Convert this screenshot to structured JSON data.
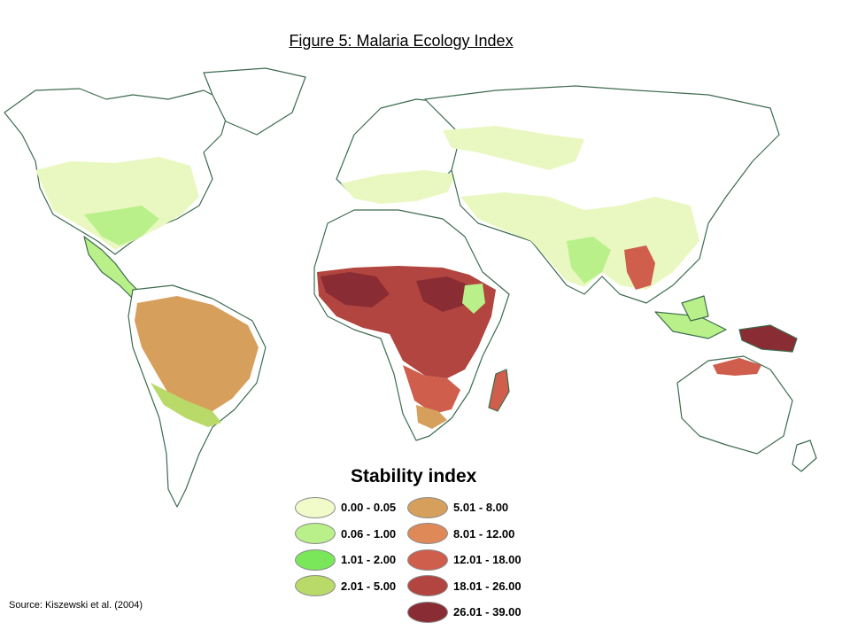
{
  "title": "Figure 5: Malaria Ecology Index",
  "legend": {
    "title": "Stability index",
    "items": [
      {
        "label": "0.00 - 0.05",
        "color": "#f1fbc9"
      },
      {
        "label": "0.06 - 1.00",
        "color": "#b9f08a"
      },
      {
        "label": "1.01 - 2.00",
        "color": "#7ae65a"
      },
      {
        "label": "2.01 - 5.00",
        "color": "#b9da68"
      },
      {
        "label": "5.01 - 8.00",
        "color": "#d6a05c"
      },
      {
        "label": "8.01 - 12.00",
        "color": "#df8858"
      },
      {
        "label": "12.01 - 18.00",
        "color": "#cf5e4c"
      },
      {
        "label": "18.01 - 26.00",
        "color": "#b2453f"
      },
      {
        "label": "26.01 - 39.00",
        "color": "#8a2c33"
      }
    ]
  },
  "source": "Source: Kiszewski et al. (2004)",
  "map": {
    "outline_color": "#3d6b4f"
  }
}
